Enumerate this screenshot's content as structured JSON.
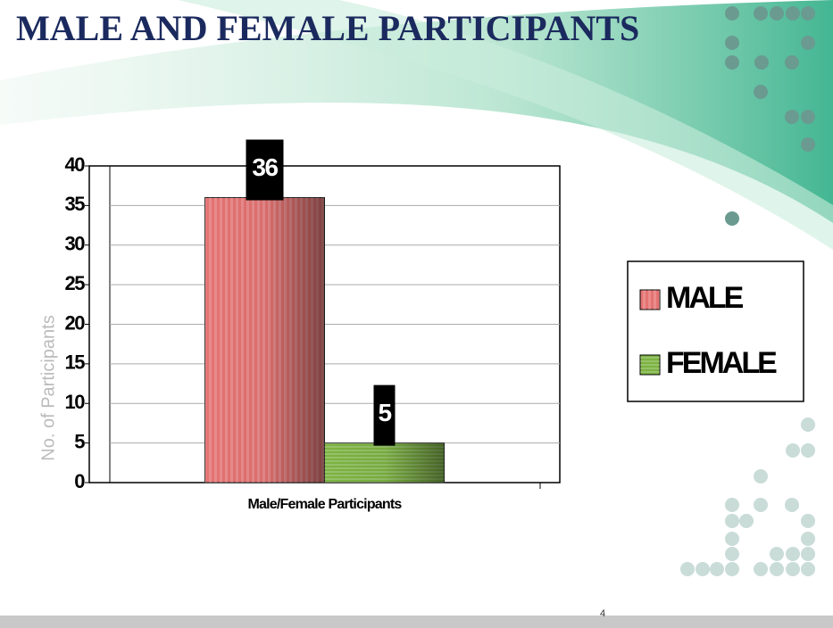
{
  "chart_data": {
    "type": "bar",
    "title": "MALE AND FEMALE PARTICIPANTS",
    "categories": [
      "Male/Female Participants"
    ],
    "y_label": "No. of Participants",
    "series": [
      {
        "name": "MALE",
        "color": "#e57373",
        "values": [
          36
        ]
      },
      {
        "name": "FEMALE",
        "color": "#7cb342",
        "values": [
          5
        ]
      }
    ],
    "ylim": [
      0,
      40
    ],
    "yticks": [
      0,
      5,
      10,
      15,
      20,
      25,
      30,
      35,
      40
    ],
    "grid": true,
    "legend": "right"
  },
  "page_number": "4"
}
